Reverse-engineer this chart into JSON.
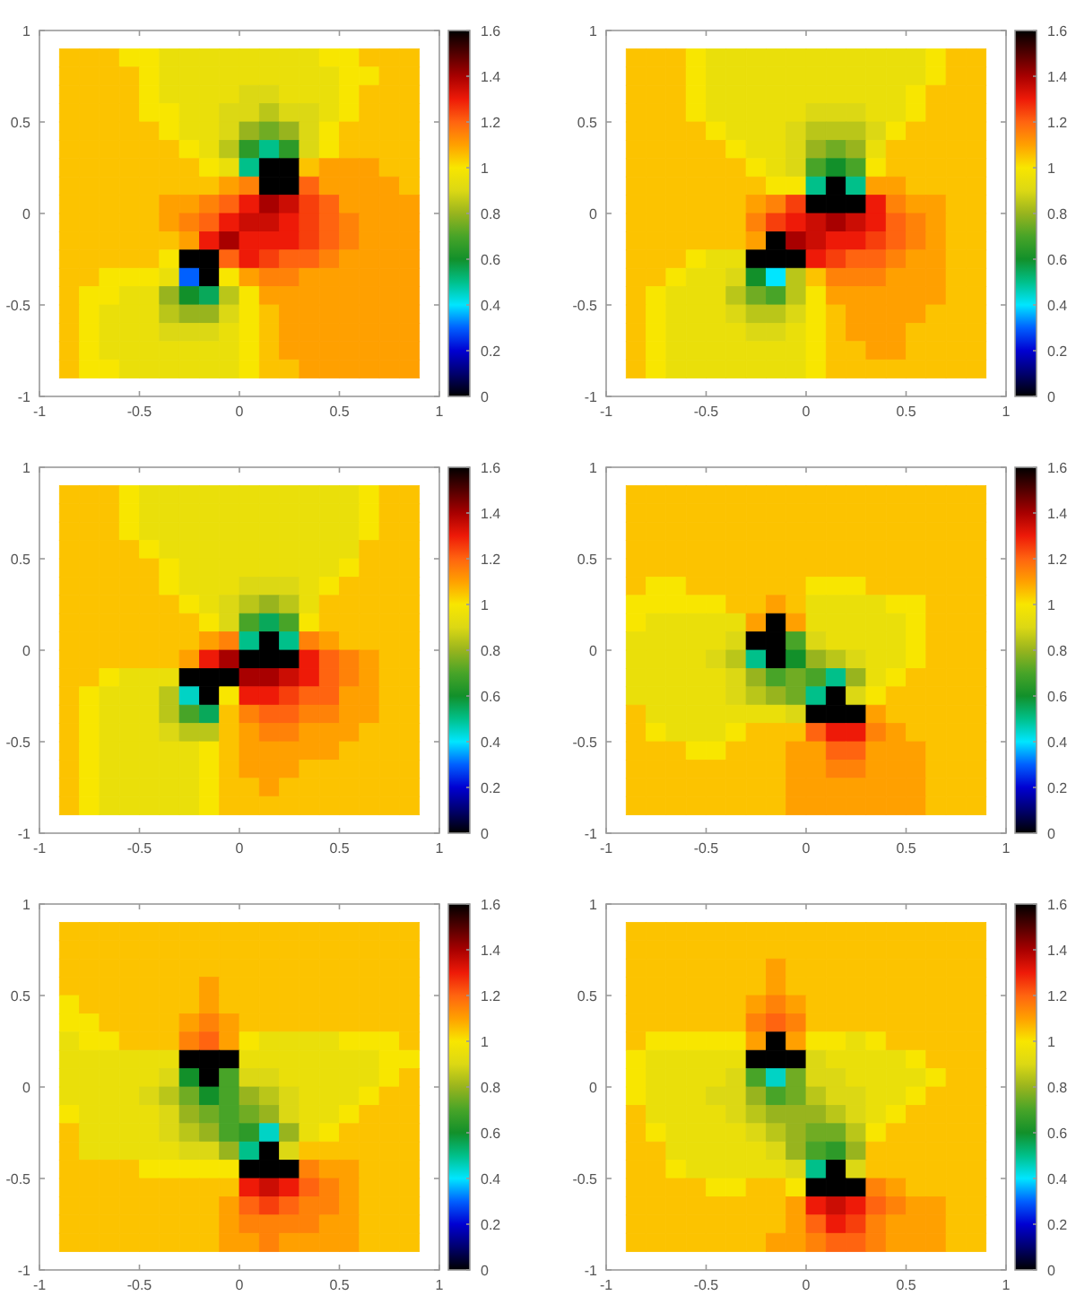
{
  "chart_data": [
    {
      "type": "heatmap",
      "x": [
        -0.85,
        -0.75,
        -0.65,
        -0.55,
        -0.45,
        -0.35,
        -0.25,
        -0.15,
        -0.05,
        0.05,
        0.15,
        0.25,
        0.35,
        0.45,
        0.55,
        0.65,
        0.75,
        0.85
      ],
      "y": [
        0.85,
        0.75,
        0.65,
        0.55,
        0.45,
        0.35,
        0.25,
        0.15,
        0.05,
        -0.05,
        -0.15,
        -0.25,
        -0.35,
        -0.45,
        -0.55,
        -0.65,
        -0.75,
        -0.85
      ],
      "cells": [
        [
          1.05,
          1.05,
          1.05,
          1,
          1,
          0.95,
          0.95,
          0.95,
          0.95,
          0.95,
          0.95,
          0.95,
          0.95,
          1,
          1,
          1.05,
          1.05,
          1.05
        ],
        [
          1.05,
          1.05,
          1.05,
          1.05,
          1,
          0.95,
          0.95,
          0.95,
          0.95,
          0.95,
          0.95,
          0.95,
          0.95,
          0.95,
          1,
          1,
          1.05,
          1.05
        ],
        [
          1.05,
          1.05,
          1.05,
          1.05,
          1,
          0.95,
          0.95,
          0.95,
          0.95,
          0.9,
          0.9,
          0.95,
          0.95,
          0.95,
          1,
          1.05,
          1.05,
          1.05
        ],
        [
          1.05,
          1.05,
          1.05,
          1.05,
          1,
          1,
          0.95,
          0.95,
          0.9,
          0.9,
          0.85,
          0.9,
          0.9,
          0.95,
          1,
          1.05,
          1.05,
          1.05
        ],
        [
          1.05,
          1.05,
          1.05,
          1.05,
          1.05,
          1,
          0.95,
          0.95,
          0.9,
          0.8,
          0.75,
          0.8,
          0.9,
          1,
          1.05,
          1.05,
          1.05,
          1.05
        ],
        [
          1.05,
          1.05,
          1.05,
          1.05,
          1.05,
          1.05,
          1,
          0.95,
          0.85,
          0.65,
          0.5,
          0.65,
          0.9,
          1,
          1.05,
          1.05,
          1.05,
          1.05
        ],
        [
          1.05,
          1.05,
          1.05,
          1.05,
          1.05,
          1.05,
          1.05,
          1,
          0.95,
          0.5,
          0,
          0,
          1.05,
          1.1,
          1.1,
          1.1,
          1.05,
          1.05
        ],
        [
          1.05,
          1.05,
          1.05,
          1.05,
          1.05,
          1.05,
          1.05,
          1.05,
          1.1,
          1.15,
          0,
          0,
          1.2,
          1.1,
          1.1,
          1.1,
          1.1,
          1.05
        ],
        [
          1.05,
          1.05,
          1.05,
          1.05,
          1.05,
          1.1,
          1.1,
          1.15,
          1.2,
          1.3,
          1.4,
          1.35,
          1.25,
          1.2,
          1.1,
          1.1,
          1.1,
          1.1
        ],
        [
          1.05,
          1.05,
          1.05,
          1.05,
          1.05,
          1.1,
          1.15,
          1.2,
          1.3,
          1.35,
          1.35,
          1.3,
          1.25,
          1.2,
          1.15,
          1.1,
          1.1,
          1.1
        ],
        [
          1.05,
          1.05,
          1.05,
          1.05,
          1.05,
          1.05,
          1.1,
          1.3,
          1.4,
          1.3,
          1.3,
          1.3,
          1.25,
          1.2,
          1.15,
          1.1,
          1.1,
          1.1
        ],
        [
          1.05,
          1.05,
          1.05,
          1.05,
          1.05,
          1,
          0,
          0,
          1.2,
          1.3,
          1.25,
          1.2,
          1.2,
          1.15,
          1.1,
          1.1,
          1.1,
          1.1
        ],
        [
          1.05,
          1.05,
          1,
          1,
          1,
          0.95,
          0.3,
          0,
          1,
          1.1,
          1.15,
          1.15,
          1.1,
          1.1,
          1.1,
          1.1,
          1.1,
          1.1
        ],
        [
          1.05,
          1,
          1,
          0.95,
          0.95,
          0.8,
          0.6,
          0.55,
          0.85,
          1,
          1.1,
          1.1,
          1.1,
          1.1,
          1.1,
          1.1,
          1.1,
          1.1
        ],
        [
          1.05,
          1,
          0.95,
          0.95,
          0.95,
          0.85,
          0.8,
          0.8,
          0.9,
          1,
          1.05,
          1.1,
          1.1,
          1.1,
          1.1,
          1.1,
          1.1,
          1.1
        ],
        [
          1.05,
          1,
          0.95,
          0.95,
          0.95,
          0.9,
          0.9,
          0.9,
          0.95,
          1,
          1.05,
          1.1,
          1.1,
          1.1,
          1.1,
          1.1,
          1.1,
          1.1
        ],
        [
          1.05,
          1,
          0.95,
          0.95,
          0.95,
          0.95,
          0.95,
          0.95,
          0.95,
          1,
          1.05,
          1.1,
          1.1,
          1.1,
          1.1,
          1.1,
          1.1,
          1.1
        ],
        [
          1.05,
          1,
          1,
          0.95,
          0.95,
          0.95,
          0.95,
          0.95,
          0.95,
          1,
          1.05,
          1.05,
          1.1,
          1.1,
          1.1,
          1.1,
          1.1,
          1.1
        ]
      ],
      "clim": [
        0,
        1.6
      ],
      "cticks": [
        0,
        0.2,
        0.4,
        0.6,
        0.8,
        1,
        1.2,
        1.4,
        1.6
      ],
      "xlim": [
        -1,
        1
      ],
      "ylim": [
        -1,
        1
      ],
      "xticks": [
        -1,
        -0.5,
        0,
        0.5,
        1
      ],
      "yticks": [
        -1,
        -0.5,
        0,
        0.5,
        1
      ]
    },
    {
      "type": "heatmap",
      "x": [
        -0.85,
        -0.75,
        -0.65,
        -0.55,
        -0.45,
        -0.35,
        -0.25,
        -0.15,
        -0.05,
        0.05,
        0.15,
        0.25,
        0.35,
        0.45,
        0.55,
        0.65,
        0.75,
        0.85
      ],
      "y": [
        0.85,
        0.75,
        0.65,
        0.55,
        0.45,
        0.35,
        0.25,
        0.15,
        0.05,
        -0.05,
        -0.15,
        -0.25,
        -0.35,
        -0.45,
        -0.55,
        -0.65,
        -0.75,
        -0.85
      ],
      "cells": [
        [
          1.05,
          1.05,
          1.05,
          1,
          0.95,
          0.95,
          0.95,
          0.95,
          0.95,
          0.95,
          0.95,
          0.95,
          0.95,
          0.95,
          0.95,
          1,
          1.05,
          1.05
        ],
        [
          1.05,
          1.05,
          1.05,
          1,
          0.95,
          0.95,
          0.95,
          0.95,
          0.95,
          0.95,
          0.95,
          0.95,
          0.95,
          0.95,
          0.95,
          1,
          1.05,
          1.05
        ],
        [
          1.05,
          1.05,
          1.05,
          1,
          0.95,
          0.95,
          0.95,
          0.95,
          0.95,
          0.95,
          0.95,
          0.95,
          0.95,
          0.95,
          1,
          1.05,
          1.05,
          1.05
        ],
        [
          1.05,
          1.05,
          1.05,
          1,
          0.95,
          0.95,
          0.95,
          0.95,
          0.95,
          0.9,
          0.9,
          0.9,
          0.95,
          0.95,
          1,
          1.05,
          1.05,
          1.05
        ],
        [
          1.05,
          1.05,
          1.05,
          1.05,
          1,
          0.95,
          0.95,
          0.95,
          0.9,
          0.85,
          0.85,
          0.85,
          0.9,
          1,
          1.05,
          1.05,
          1.05,
          1.05
        ],
        [
          1.05,
          1.05,
          1.05,
          1.05,
          1.05,
          1,
          0.95,
          0.95,
          0.9,
          0.8,
          0.75,
          0.8,
          0.95,
          1.05,
          1.05,
          1.05,
          1.05,
          1.05
        ],
        [
          1.05,
          1.05,
          1.05,
          1.05,
          1.05,
          1.05,
          1,
          0.95,
          0.9,
          0.7,
          0.6,
          0.7,
          1,
          1.05,
          1.05,
          1.05,
          1.05,
          1.05
        ],
        [
          1.05,
          1.05,
          1.05,
          1.05,
          1.05,
          1.05,
          1.05,
          1,
          1,
          0.5,
          0,
          0.5,
          1.1,
          1.1,
          1.05,
          1.05,
          1.05,
          1.05
        ],
        [
          1.05,
          1.05,
          1.05,
          1.05,
          1.05,
          1.05,
          1.1,
          1.15,
          1.25,
          0,
          0,
          0,
          1.3,
          1.15,
          1.1,
          1.1,
          1.05,
          1.05
        ],
        [
          1.05,
          1.05,
          1.05,
          1.05,
          1.05,
          1.05,
          1.15,
          1.25,
          1.3,
          1.35,
          1.4,
          1.35,
          1.3,
          1.2,
          1.15,
          1.1,
          1.05,
          1.05
        ],
        [
          1.05,
          1.05,
          1.05,
          1.05,
          1.05,
          1.05,
          1.1,
          0,
          1.4,
          1.35,
          1.3,
          1.3,
          1.25,
          1.2,
          1.15,
          1.1,
          1.05,
          1.05
        ],
        [
          1.05,
          1.05,
          1.05,
          1,
          0.95,
          0.95,
          0,
          0,
          0,
          1.3,
          1.25,
          1.2,
          1.2,
          1.15,
          1.1,
          1.1,
          1.05,
          1.05
        ],
        [
          1.05,
          1.05,
          1,
          0.95,
          0.95,
          0.9,
          0.6,
          0.4,
          0.85,
          1.05,
          1.15,
          1.15,
          1.15,
          1.1,
          1.1,
          1.1,
          1.05,
          1.05
        ],
        [
          1.05,
          1,
          0.95,
          0.95,
          0.95,
          0.85,
          0.75,
          0.7,
          0.85,
          1,
          1.1,
          1.1,
          1.1,
          1.1,
          1.1,
          1.1,
          1.05,
          1.05
        ],
        [
          1.05,
          1,
          0.95,
          0.95,
          0.95,
          0.9,
          0.85,
          0.85,
          0.9,
          1,
          1.05,
          1.1,
          1.1,
          1.1,
          1.1,
          1.05,
          1.05,
          1.05
        ],
        [
          1.05,
          1,
          0.95,
          0.95,
          0.95,
          0.95,
          0.9,
          0.9,
          0.95,
          1,
          1.05,
          1.1,
          1.1,
          1.1,
          1.05,
          1.05,
          1.05,
          1.05
        ],
        [
          1.05,
          1,
          0.95,
          0.95,
          0.95,
          0.95,
          0.95,
          0.95,
          0.95,
          1,
          1.05,
          1.05,
          1.1,
          1.1,
          1.05,
          1.05,
          1.05,
          1.05
        ],
        [
          1.05,
          1,
          0.95,
          0.95,
          0.95,
          0.95,
          0.95,
          0.95,
          0.95,
          1,
          1.05,
          1.05,
          1.05,
          1.05,
          1.05,
          1.05,
          1.05,
          1.05
        ]
      ],
      "clim": [
        0,
        1.6
      ],
      "cticks": [
        0,
        0.2,
        0.4,
        0.6,
        0.8,
        1,
        1.2,
        1.4,
        1.6
      ],
      "xlim": [
        -1,
        1
      ],
      "ylim": [
        -1,
        1
      ],
      "xticks": [
        -1,
        -0.5,
        0,
        0.5,
        1
      ],
      "yticks": [
        -1,
        -0.5,
        0,
        0.5,
        1
      ]
    },
    {
      "type": "heatmap",
      "x": [
        -0.85,
        -0.75,
        -0.65,
        -0.55,
        -0.45,
        -0.35,
        -0.25,
        -0.15,
        -0.05,
        0.05,
        0.15,
        0.25,
        0.35,
        0.45,
        0.55,
        0.65,
        0.75,
        0.85
      ],
      "y": [
        0.85,
        0.75,
        0.65,
        0.55,
        0.45,
        0.35,
        0.25,
        0.15,
        0.05,
        -0.05,
        -0.15,
        -0.25,
        -0.35,
        -0.45,
        -0.55,
        -0.65,
        -0.75,
        -0.85
      ],
      "cells": [
        [
          1.05,
          1.05,
          1.05,
          1,
          0.95,
          0.95,
          0.95,
          0.95,
          0.95,
          0.95,
          0.95,
          0.95,
          0.95,
          0.95,
          0.95,
          1,
          1.05,
          1.05
        ],
        [
          1.05,
          1.05,
          1.05,
          1,
          0.95,
          0.95,
          0.95,
          0.95,
          0.95,
          0.95,
          0.95,
          0.95,
          0.95,
          0.95,
          0.95,
          1,
          1.05,
          1.05
        ],
        [
          1.05,
          1.05,
          1.05,
          1,
          0.95,
          0.95,
          0.95,
          0.95,
          0.95,
          0.95,
          0.95,
          0.95,
          0.95,
          0.95,
          0.95,
          1,
          1.05,
          1.05
        ],
        [
          1.05,
          1.05,
          1.05,
          1.05,
          1,
          0.95,
          0.95,
          0.95,
          0.95,
          0.95,
          0.95,
          0.95,
          0.95,
          0.95,
          0.95,
          1.05,
          1.05,
          1.05
        ],
        [
          1.05,
          1.05,
          1.05,
          1.05,
          1.05,
          1,
          0.95,
          0.95,
          0.95,
          0.95,
          0.95,
          0.95,
          0.95,
          0.95,
          1,
          1.05,
          1.05,
          1.05
        ],
        [
          1.05,
          1.05,
          1.05,
          1.05,
          1.05,
          1,
          0.95,
          0.95,
          0.95,
          0.9,
          0.9,
          0.9,
          0.95,
          1,
          1.05,
          1.05,
          1.05,
          1.05
        ],
        [
          1.05,
          1.05,
          1.05,
          1.05,
          1.05,
          1.05,
          1,
          0.95,
          0.9,
          0.85,
          0.8,
          0.85,
          0.95,
          1.05,
          1.05,
          1.05,
          1.05,
          1.05
        ],
        [
          1.05,
          1.05,
          1.05,
          1.05,
          1.05,
          1.05,
          1.05,
          1,
          0.9,
          0.7,
          0.55,
          0.7,
          1,
          1.05,
          1.05,
          1.05,
          1.05,
          1.05
        ],
        [
          1.05,
          1.05,
          1.05,
          1.05,
          1.05,
          1.05,
          1.05,
          1.1,
          1.15,
          0.5,
          0,
          0.5,
          1.15,
          1.1,
          1.05,
          1.05,
          1.05,
          1.05
        ],
        [
          1.05,
          1.05,
          1.05,
          1.05,
          1.05,
          1.05,
          1.1,
          1.3,
          1.4,
          0,
          0,
          0,
          1.3,
          1.2,
          1.15,
          1.1,
          1.05,
          1.05
        ],
        [
          1.05,
          1.05,
          1,
          0.95,
          0.95,
          0.95,
          0,
          0,
          0,
          1.4,
          1.4,
          1.35,
          1.3,
          1.2,
          1.15,
          1.1,
          1.05,
          1.05
        ],
        [
          1.05,
          1,
          0.95,
          0.95,
          0.95,
          0.85,
          0.45,
          0,
          1,
          1.3,
          1.3,
          1.25,
          1.2,
          1.2,
          1.1,
          1.1,
          1.05,
          1.05
        ],
        [
          1.05,
          1,
          0.95,
          0.95,
          0.95,
          0.85,
          0.7,
          0.55,
          1.05,
          1.15,
          1.2,
          1.2,
          1.15,
          1.15,
          1.1,
          1.1,
          1.05,
          1.05
        ],
        [
          1.05,
          1,
          0.95,
          0.95,
          0.95,
          0.9,
          0.85,
          0.85,
          1.05,
          1.1,
          1.15,
          1.15,
          1.1,
          1.1,
          1.1,
          1.05,
          1.05,
          1.05
        ],
        [
          1.05,
          1,
          0.95,
          0.95,
          0.95,
          0.95,
          0.95,
          1,
          1.05,
          1.1,
          1.1,
          1.1,
          1.1,
          1.1,
          1.05,
          1.05,
          1.05,
          1.05
        ],
        [
          1.05,
          1,
          0.95,
          0.95,
          0.95,
          0.95,
          0.95,
          1,
          1.05,
          1.1,
          1.1,
          1.1,
          1.05,
          1.05,
          1.05,
          1.05,
          1.05,
          1.05
        ],
        [
          1.05,
          1,
          0.95,
          0.95,
          0.95,
          0.95,
          0.95,
          1,
          1.05,
          1.05,
          1.1,
          1.05,
          1.05,
          1.05,
          1.05,
          1.05,
          1.05,
          1.05
        ],
        [
          1.05,
          1,
          0.95,
          0.95,
          0.95,
          0.95,
          0.95,
          1,
          1.05,
          1.05,
          1.05,
          1.05,
          1.05,
          1.05,
          1.05,
          1.05,
          1.05,
          1.05
        ]
      ],
      "clim": [
        0,
        1.6
      ],
      "cticks": [
        0,
        0.2,
        0.4,
        0.6,
        0.8,
        1,
        1.2,
        1.4,
        1.6
      ],
      "xlim": [
        -1,
        1
      ],
      "ylim": [
        -1,
        1
      ],
      "xticks": [
        -1,
        -0.5,
        0,
        0.5,
        1
      ],
      "yticks": [
        -1,
        -0.5,
        0,
        0.5,
        1
      ]
    },
    {
      "type": "heatmap",
      "x": [
        -0.85,
        -0.75,
        -0.65,
        -0.55,
        -0.45,
        -0.35,
        -0.25,
        -0.15,
        -0.05,
        0.05,
        0.15,
        0.25,
        0.35,
        0.45,
        0.55,
        0.65,
        0.75,
        0.85
      ],
      "y": [
        0.85,
        0.75,
        0.65,
        0.55,
        0.45,
        0.35,
        0.25,
        0.15,
        0.05,
        -0.05,
        -0.15,
        -0.25,
        -0.35,
        -0.45,
        -0.55,
        -0.65,
        -0.75,
        -0.85
      ],
      "cells": [
        [
          1.05,
          1.05,
          1.05,
          1.05,
          1.05,
          1.05,
          1.05,
          1.05,
          1.05,
          1.05,
          1.05,
          1.05,
          1.05,
          1.05,
          1.05,
          1.05,
          1.05,
          1.05
        ],
        [
          1.05,
          1.05,
          1.05,
          1.05,
          1.05,
          1.05,
          1.05,
          1.05,
          1.05,
          1.05,
          1.05,
          1.05,
          1.05,
          1.05,
          1.05,
          1.05,
          1.05,
          1.05
        ],
        [
          1.05,
          1.05,
          1.05,
          1.05,
          1.05,
          1.05,
          1.05,
          1.05,
          1.05,
          1.05,
          1.05,
          1.05,
          1.05,
          1.05,
          1.05,
          1.05,
          1.05,
          1.05
        ],
        [
          1.05,
          1.05,
          1.05,
          1.05,
          1.05,
          1.05,
          1.05,
          1.05,
          1.05,
          1.05,
          1.05,
          1.05,
          1.05,
          1.05,
          1.05,
          1.05,
          1.05,
          1.05
        ],
        [
          1.05,
          1.05,
          1.05,
          1.05,
          1.05,
          1.05,
          1.05,
          1.05,
          1.05,
          1.05,
          1.05,
          1.05,
          1.05,
          1.05,
          1.05,
          1.05,
          1.05,
          1.05
        ],
        [
          1.05,
          1,
          1,
          1.05,
          1.05,
          1.05,
          1.05,
          1.05,
          1.05,
          1,
          1,
          1,
          1.05,
          1.05,
          1.05,
          1.05,
          1.05,
          1.05
        ],
        [
          1,
          1,
          1,
          1,
          1,
          1.05,
          1.05,
          1.1,
          1.05,
          0.95,
          0.95,
          0.95,
          0.95,
          1,
          1,
          1.05,
          1.05,
          1.05
        ],
        [
          1,
          0.95,
          0.95,
          0.95,
          0.95,
          0.95,
          1.1,
          0,
          1.1,
          0.95,
          0.95,
          0.95,
          0.95,
          0.95,
          1,
          1.05,
          1.05,
          1.05
        ],
        [
          0.95,
          0.95,
          0.95,
          0.95,
          0.95,
          0.9,
          0,
          0,
          0.7,
          0.9,
          0.95,
          0.95,
          0.95,
          0.95,
          1,
          1.05,
          1.05,
          1.05
        ],
        [
          0.95,
          0.95,
          0.95,
          0.95,
          0.9,
          0.85,
          0.5,
          0,
          0.6,
          0.8,
          0.85,
          0.9,
          0.95,
          0.95,
          1,
          1.05,
          1.05,
          1.05
        ],
        [
          0.95,
          0.95,
          0.95,
          0.95,
          0.95,
          0.9,
          0.8,
          0.7,
          0.75,
          0.7,
          0.5,
          0.8,
          0.95,
          1,
          1.05,
          1.05,
          1.05,
          1.05
        ],
        [
          0.95,
          0.95,
          0.95,
          0.95,
          0.95,
          0.9,
          0.85,
          0.8,
          0.75,
          0.5,
          0,
          0.9,
          1,
          1.05,
          1.05,
          1.05,
          1.05,
          1.05
        ],
        [
          1.05,
          0.95,
          0.95,
          0.95,
          0.95,
          0.95,
          0.95,
          0.95,
          0.9,
          0,
          0,
          0,
          1.1,
          1.05,
          1.05,
          1.05,
          1.05,
          1.05
        ],
        [
          1.05,
          1,
          0.95,
          0.95,
          0.95,
          1,
          1.05,
          1.05,
          1.05,
          1.2,
          1.3,
          1.3,
          1.15,
          1.1,
          1.05,
          1.05,
          1.05,
          1.05
        ],
        [
          1.05,
          1.05,
          1.05,
          1,
          1,
          1.05,
          1.05,
          1.05,
          1.1,
          1.1,
          1.2,
          1.2,
          1.1,
          1.1,
          1.1,
          1.05,
          1.05,
          1.05
        ],
        [
          1.05,
          1.05,
          1.05,
          1.05,
          1.05,
          1.05,
          1.05,
          1.05,
          1.1,
          1.1,
          1.15,
          1.15,
          1.1,
          1.1,
          1.1,
          1.05,
          1.05,
          1.05
        ],
        [
          1.05,
          1.05,
          1.05,
          1.05,
          1.05,
          1.05,
          1.05,
          1.05,
          1.1,
          1.1,
          1.1,
          1.1,
          1.1,
          1.1,
          1.1,
          1.05,
          1.05,
          1.05
        ],
        [
          1.05,
          1.05,
          1.05,
          1.05,
          1.05,
          1.05,
          1.05,
          1.05,
          1.1,
          1.1,
          1.1,
          1.1,
          1.1,
          1.1,
          1.1,
          1.05,
          1.05,
          1.05
        ]
      ],
      "clim": [
        0,
        1.6
      ],
      "cticks": [
        0,
        0.2,
        0.4,
        0.6,
        0.8,
        1,
        1.2,
        1.4,
        1.6
      ],
      "xlim": [
        -1,
        1
      ],
      "ylim": [
        -1,
        1
      ],
      "xticks": [
        -1,
        -0.5,
        0,
        0.5,
        1
      ],
      "yticks": [
        -1,
        -0.5,
        0,
        0.5,
        1
      ]
    },
    {
      "type": "heatmap",
      "x": [
        -0.85,
        -0.75,
        -0.65,
        -0.55,
        -0.45,
        -0.35,
        -0.25,
        -0.15,
        -0.05,
        0.05,
        0.15,
        0.25,
        0.35,
        0.45,
        0.55,
        0.65,
        0.75,
        0.85
      ],
      "y": [
        0.85,
        0.75,
        0.65,
        0.55,
        0.45,
        0.35,
        0.25,
        0.15,
        0.05,
        -0.05,
        -0.15,
        -0.25,
        -0.35,
        -0.45,
        -0.55,
        -0.65,
        -0.75,
        -0.85
      ],
      "cells": [
        [
          1.05,
          1.05,
          1.05,
          1.05,
          1.05,
          1.05,
          1.05,
          1.05,
          1.05,
          1.05,
          1.05,
          1.05,
          1.05,
          1.05,
          1.05,
          1.05,
          1.05,
          1.05
        ],
        [
          1.05,
          1.05,
          1.05,
          1.05,
          1.05,
          1.05,
          1.05,
          1.05,
          1.05,
          1.05,
          1.05,
          1.05,
          1.05,
          1.05,
          1.05,
          1.05,
          1.05,
          1.05
        ],
        [
          1.05,
          1.05,
          1.05,
          1.05,
          1.05,
          1.05,
          1.05,
          1.05,
          1.05,
          1.05,
          1.05,
          1.05,
          1.05,
          1.05,
          1.05,
          1.05,
          1.05,
          1.05
        ],
        [
          1.05,
          1.05,
          1.05,
          1.05,
          1.05,
          1.05,
          1.05,
          1.1,
          1.05,
          1.05,
          1.05,
          1.05,
          1.05,
          1.05,
          1.05,
          1.05,
          1.05,
          1.05
        ],
        [
          1,
          1.05,
          1.05,
          1.05,
          1.05,
          1.05,
          1.05,
          1.1,
          1.05,
          1.05,
          1.05,
          1.05,
          1.05,
          1.05,
          1.05,
          1.05,
          1.05,
          1.05
        ],
        [
          1,
          1,
          1.05,
          1.05,
          1.05,
          1.05,
          1.1,
          1.15,
          1.1,
          1.05,
          1.05,
          1.05,
          1.05,
          1.05,
          1.05,
          1.05,
          1.05,
          1.05
        ],
        [
          0.95,
          1,
          1,
          1.05,
          1.05,
          1.05,
          1.15,
          1.2,
          1.1,
          1,
          0.95,
          0.95,
          0.95,
          0.95,
          1,
          1,
          1,
          1.05
        ],
        [
          0.95,
          0.95,
          0.95,
          0.95,
          0.95,
          0.95,
          0,
          0,
          0,
          0.95,
          0.95,
          0.95,
          0.95,
          0.95,
          0.95,
          0.95,
          1,
          1
        ],
        [
          0.95,
          0.95,
          0.95,
          0.95,
          0.95,
          0.9,
          0.6,
          0,
          0.7,
          0.9,
          0.9,
          0.95,
          0.95,
          0.95,
          0.95,
          0.95,
          1,
          1.05
        ],
        [
          0.95,
          0.95,
          0.95,
          0.95,
          0.9,
          0.85,
          0.75,
          0.6,
          0.7,
          0.8,
          0.85,
          0.9,
          0.95,
          0.95,
          0.95,
          1,
          1.05,
          1.05
        ],
        [
          1,
          0.95,
          0.95,
          0.95,
          0.95,
          0.9,
          0.8,
          0.75,
          0.7,
          0.75,
          0.8,
          0.9,
          0.95,
          0.95,
          1,
          1.05,
          1.05,
          1.05
        ],
        [
          1.05,
          0.95,
          0.95,
          0.95,
          0.95,
          0.9,
          0.85,
          0.8,
          0.7,
          0.65,
          0.45,
          0.8,
          0.95,
          1,
          1.05,
          1.05,
          1.05,
          1.05
        ],
        [
          1.05,
          0.95,
          0.95,
          0.95,
          0.95,
          0.95,
          0.9,
          0.9,
          0.8,
          0.5,
          0,
          0.9,
          1.05,
          1.05,
          1.05,
          1.05,
          1.05,
          1.05
        ],
        [
          1.05,
          1.05,
          1.05,
          1.05,
          1,
          1,
          1,
          1,
          1,
          0,
          0,
          0,
          1.15,
          1.1,
          1.1,
          1.05,
          1.05,
          1.05
        ],
        [
          1.05,
          1.05,
          1.05,
          1.05,
          1.05,
          1.05,
          1.05,
          1.05,
          1.05,
          1.3,
          1.35,
          1.3,
          1.2,
          1.15,
          1.1,
          1.05,
          1.05,
          1.05
        ],
        [
          1.05,
          1.05,
          1.05,
          1.05,
          1.05,
          1.05,
          1.05,
          1.05,
          1.1,
          1.2,
          1.25,
          1.2,
          1.15,
          1.15,
          1.1,
          1.05,
          1.05,
          1.05
        ],
        [
          1.05,
          1.05,
          1.05,
          1.05,
          1.05,
          1.05,
          1.05,
          1.05,
          1.1,
          1.15,
          1.15,
          1.15,
          1.15,
          1.1,
          1.1,
          1.05,
          1.05,
          1.05
        ],
        [
          1.05,
          1.05,
          1.05,
          1.05,
          1.05,
          1.05,
          1.05,
          1.05,
          1.1,
          1.1,
          1.15,
          1.1,
          1.1,
          1.1,
          1.1,
          1.05,
          1.05,
          1.05
        ]
      ],
      "clim": [
        0,
        1.6
      ],
      "cticks": [
        0,
        0.2,
        0.4,
        0.6,
        0.8,
        1,
        1.2,
        1.4,
        1.6
      ],
      "xlim": [
        -1,
        1
      ],
      "ylim": [
        -1,
        1
      ],
      "xticks": [
        -1,
        -0.5,
        0,
        0.5,
        1
      ],
      "yticks": [
        -1,
        -0.5,
        0,
        0.5,
        1
      ]
    },
    {
      "type": "heatmap",
      "x": [
        -0.85,
        -0.75,
        -0.65,
        -0.55,
        -0.45,
        -0.35,
        -0.25,
        -0.15,
        -0.05,
        0.05,
        0.15,
        0.25,
        0.35,
        0.45,
        0.55,
        0.65,
        0.75,
        0.85
      ],
      "y": [
        0.85,
        0.75,
        0.65,
        0.55,
        0.45,
        0.35,
        0.25,
        0.15,
        0.05,
        -0.05,
        -0.15,
        -0.25,
        -0.35,
        -0.45,
        -0.55,
        -0.65,
        -0.75,
        -0.85
      ],
      "cells": [
        [
          1.05,
          1.05,
          1.05,
          1.05,
          1.05,
          1.05,
          1.05,
          1.05,
          1.05,
          1.05,
          1.05,
          1.05,
          1.05,
          1.05,
          1.05,
          1.05,
          1.05,
          1.05
        ],
        [
          1.05,
          1.05,
          1.05,
          1.05,
          1.05,
          1.05,
          1.05,
          1.05,
          1.05,
          1.05,
          1.05,
          1.05,
          1.05,
          1.05,
          1.05,
          1.05,
          1.05,
          1.05
        ],
        [
          1.05,
          1.05,
          1.05,
          1.05,
          1.05,
          1.05,
          1.05,
          1.1,
          1.05,
          1.05,
          1.05,
          1.05,
          1.05,
          1.05,
          1.05,
          1.05,
          1.05,
          1.05
        ],
        [
          1.05,
          1.05,
          1.05,
          1.05,
          1.05,
          1.05,
          1.05,
          1.1,
          1.05,
          1.05,
          1.05,
          1.05,
          1.05,
          1.05,
          1.05,
          1.05,
          1.05,
          1.05
        ],
        [
          1.05,
          1.05,
          1.05,
          1.05,
          1.05,
          1.05,
          1.1,
          1.15,
          1.1,
          1.05,
          1.05,
          1.05,
          1.05,
          1.05,
          1.05,
          1.05,
          1.05,
          1.05
        ],
        [
          1.05,
          1.05,
          1.05,
          1.05,
          1.05,
          1.05,
          1.15,
          1.2,
          1.15,
          1.05,
          1.05,
          1.05,
          1.05,
          1.05,
          1.05,
          1.05,
          1.05,
          1.05
        ],
        [
          1.05,
          1,
          1,
          1,
          1,
          1,
          1.1,
          0,
          1.1,
          1,
          1,
          0.95,
          1,
          1.05,
          1.05,
          1.05,
          1.05,
          1.05
        ],
        [
          1,
          0.95,
          0.95,
          0.95,
          0.95,
          0.95,
          0,
          0,
          0,
          0.9,
          0.95,
          0.95,
          0.95,
          0.95,
          1,
          1.05,
          1.05,
          1.05
        ],
        [
          1,
          0.95,
          0.95,
          0.95,
          0.95,
          0.9,
          0.7,
          0.45,
          0.75,
          0.9,
          0.9,
          0.95,
          0.95,
          0.95,
          0.95,
          1,
          1.05,
          1.05
        ],
        [
          1,
          0.95,
          0.95,
          0.95,
          0.9,
          0.9,
          0.8,
          0.7,
          0.75,
          0.85,
          0.9,
          0.9,
          0.95,
          0.95,
          1,
          1.05,
          1.05,
          1.05
        ],
        [
          1.05,
          0.95,
          0.95,
          0.95,
          0.95,
          0.9,
          0.85,
          0.8,
          0.8,
          0.8,
          0.85,
          0.9,
          0.95,
          1,
          1.05,
          1.05,
          1.05,
          1.05
        ],
        [
          1.05,
          1,
          0.95,
          0.95,
          0.95,
          0.95,
          0.9,
          0.85,
          0.8,
          0.75,
          0.75,
          0.85,
          1,
          1.05,
          1.05,
          1.05,
          1.05,
          1.05
        ],
        [
          1.05,
          1.05,
          0.95,
          0.95,
          0.95,
          0.95,
          0.95,
          0.9,
          0.8,
          0.7,
          0.65,
          0.8,
          1.05,
          1.05,
          1.05,
          1.05,
          1.05,
          1.05
        ],
        [
          1.05,
          1.05,
          1,
          0.95,
          0.95,
          0.95,
          0.95,
          0.95,
          0.9,
          0.5,
          0,
          0.9,
          1.05,
          1.05,
          1.05,
          1.05,
          1.05,
          1.05
        ],
        [
          1.05,
          1.05,
          1.05,
          1.05,
          1,
          1,
          1.05,
          1.05,
          1,
          0,
          0,
          0,
          1.15,
          1.1,
          1.05,
          1.05,
          1.05,
          1.05
        ],
        [
          1.05,
          1.05,
          1.05,
          1.05,
          1.05,
          1.05,
          1.05,
          1.05,
          1.1,
          1.3,
          1.35,
          1.3,
          1.2,
          1.15,
          1.1,
          1.1,
          1.05,
          1.05
        ],
        [
          1.05,
          1.05,
          1.05,
          1.05,
          1.05,
          1.05,
          1.05,
          1.05,
          1.1,
          1.2,
          1.3,
          1.25,
          1.15,
          1.1,
          1.1,
          1.1,
          1.05,
          1.05
        ],
        [
          1.05,
          1.05,
          1.05,
          1.05,
          1.05,
          1.05,
          1.05,
          1.1,
          1.1,
          1.15,
          1.2,
          1.2,
          1.15,
          1.1,
          1.1,
          1.1,
          1.05,
          1.05
        ]
      ],
      "clim": [
        0,
        1.6
      ],
      "cticks": [
        0,
        0.2,
        0.4,
        0.6,
        0.8,
        1,
        1.2,
        1.4,
        1.6
      ],
      "xlim": [
        -1,
        1
      ],
      "ylim": [
        -1,
        1
      ],
      "xticks": [
        -1,
        -0.5,
        0,
        0.5,
        1
      ],
      "yticks": [
        -1,
        -0.5,
        0,
        0.5,
        1
      ]
    }
  ]
}
